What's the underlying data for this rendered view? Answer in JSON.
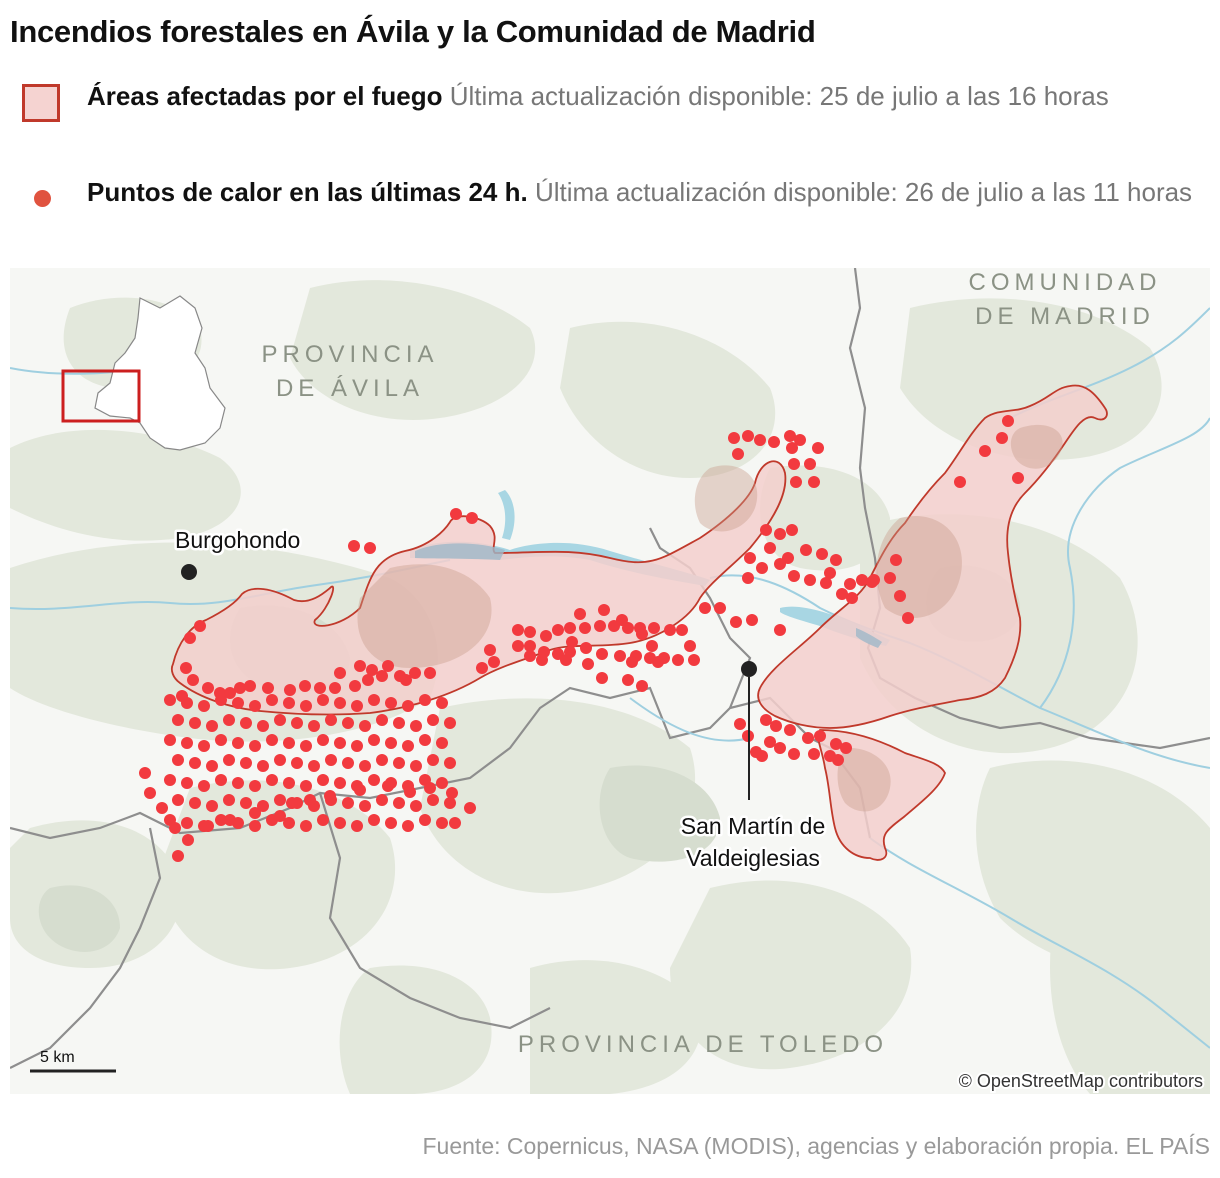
{
  "title": "Incendios forestales en Ávila y la Comunidad de Madrid",
  "legend": {
    "areas": {
      "label": "Áreas afectadas por el fuego",
      "detail": "Última actualización disponible: 25 de julio a las 16 horas"
    },
    "hotspots": {
      "label": "Puntos de calor en las últimas 24 h.",
      "detail": "Última actualización disponible: 26 de julio a las 11 horas"
    }
  },
  "map": {
    "regions": {
      "avila_line1": "PROVINCIA",
      "avila_line2": "DE ÁVILA",
      "madrid_line1": "COMUNIDAD",
      "madrid_line2": "DE MADRID",
      "toledo": "PROVINCIA DE TOLEDO"
    },
    "places": {
      "burgohondo": "Burgohondo",
      "sanmartin_line1": "San Martín de",
      "sanmartin_line2": "Valdeiglesias"
    },
    "scale_label": "5 km",
    "attribution": "© OpenStreetMap contributors"
  },
  "colors": {
    "burned_fill": "#f3cfcc",
    "burned_stroke": "#c0392b",
    "hotspot": "#f23a3f",
    "land_green": "#e3e8dc",
    "water": "#a8d6e3",
    "inset_box": "#cc1f1f"
  },
  "source": "Fuente: Copernicus, NASA (MODIS), agencias y elaboración propia. EL PAÍS"
}
